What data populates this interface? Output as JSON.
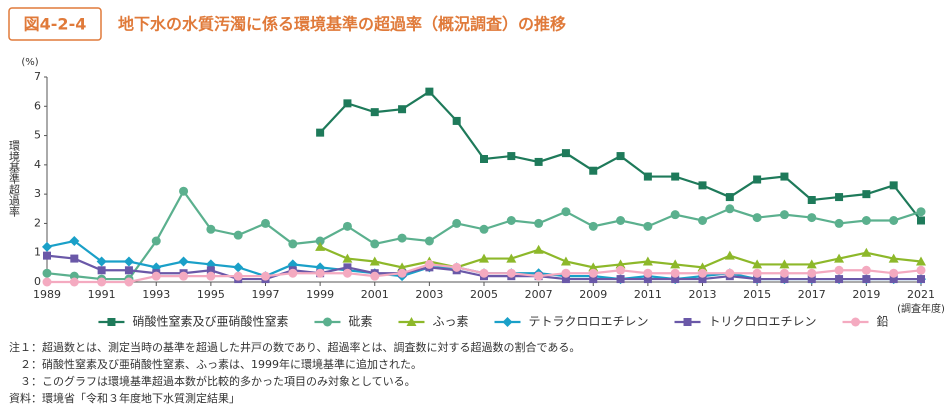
{
  "header": {
    "figure_label": "図4-2-4",
    "title": "地下水の水質汚濁に係る環境基準の超過率（概況調査）の推移"
  },
  "chart_data": {
    "type": "line",
    "ylabel": "環境基準超過率",
    "yunit": "(%)",
    "xlabel": "(調査年度)",
    "x": [
      1989,
      1990,
      1991,
      1992,
      1993,
      1994,
      1995,
      1996,
      1997,
      1998,
      1999,
      2000,
      2001,
      2002,
      2003,
      2004,
      2005,
      2006,
      2007,
      2008,
      2009,
      2010,
      2011,
      2012,
      2013,
      2014,
      2015,
      2016,
      2017,
      2018,
      2019,
      2020,
      2021
    ],
    "xlim": [
      1989,
      2021
    ],
    "xticks": [
      1989,
      1991,
      1993,
      1995,
      1997,
      1999,
      2001,
      2003,
      2005,
      2007,
      2009,
      2011,
      2013,
      2015,
      2017,
      2019,
      2021
    ],
    "ylim": [
      0,
      7
    ],
    "yticks": [
      0,
      1,
      2,
      3,
      4,
      5,
      6,
      7
    ],
    "grid": false,
    "series": [
      {
        "name": "硝酸性窒素及び亜硝酸性窒素",
        "color": "#1e7a5a",
        "marker": "square",
        "values": [
          null,
          null,
          null,
          null,
          null,
          null,
          null,
          null,
          null,
          null,
          5.1,
          6.1,
          5.8,
          5.9,
          6.5,
          5.5,
          4.2,
          4.3,
          4.1,
          4.4,
          3.8,
          4.3,
          3.6,
          3.6,
          3.3,
          2.9,
          3.5,
          3.6,
          2.8,
          2.9,
          3.0,
          3.3,
          2.1
        ]
      },
      {
        "name": "砒素",
        "color": "#5bb08e",
        "marker": "circle",
        "values": [
          0.3,
          0.2,
          0.1,
          0.1,
          1.4,
          3.1,
          1.8,
          1.6,
          2.0,
          1.3,
          1.4,
          1.9,
          1.3,
          1.5,
          1.4,
          2.0,
          1.8,
          2.1,
          2.0,
          2.4,
          1.9,
          2.1,
          1.9,
          2.3,
          2.1,
          2.5,
          2.2,
          2.3,
          2.2,
          2.0,
          2.1,
          2.1,
          2.4
        ]
      },
      {
        "name": "ふっ素",
        "color": "#8db82a",
        "marker": "triangle",
        "values": [
          null,
          null,
          null,
          null,
          null,
          null,
          null,
          null,
          null,
          null,
          1.2,
          0.8,
          0.7,
          0.5,
          0.7,
          0.5,
          0.8,
          0.8,
          1.1,
          0.7,
          0.5,
          0.6,
          0.7,
          0.6,
          0.5,
          0.9,
          0.6,
          0.6,
          0.6,
          0.8,
          1.0,
          0.8,
          0.7
        ]
      },
      {
        "name": "テトラクロロエチレン",
        "color": "#1aa0c8",
        "marker": "diamond",
        "values": [
          1.2,
          1.4,
          0.7,
          0.7,
          0.5,
          0.7,
          0.6,
          0.5,
          0.2,
          0.6,
          0.5,
          0.4,
          0.3,
          0.2,
          0.5,
          0.5,
          0.3,
          0.3,
          0.3,
          0.2,
          0.2,
          0.1,
          0.2,
          0.1,
          0.2,
          0.3,
          0.1,
          0.1,
          0.1,
          0.1,
          0.1,
          0.1,
          0.1
        ]
      },
      {
        "name": "トリクロロエチレン",
        "color": "#6a58a8",
        "marker": "square",
        "values": [
          0.9,
          0.8,
          0.4,
          0.4,
          0.3,
          0.3,
          0.4,
          0.1,
          0.1,
          0.4,
          0.3,
          0.5,
          0.3,
          0.3,
          0.5,
          0.4,
          0.2,
          0.2,
          0.2,
          0.1,
          0.1,
          0.1,
          0.1,
          0.1,
          0.1,
          0.2,
          0.1,
          0.1,
          0.1,
          0.1,
          0.1,
          0.1,
          0.1
        ]
      },
      {
        "name": "鉛",
        "color": "#f4aac0",
        "marker": "circle",
        "values": [
          0.0,
          0.0,
          0.0,
          0.0,
          0.2,
          0.2,
          0.2,
          0.2,
          0.2,
          0.3,
          0.3,
          0.3,
          0.2,
          0.3,
          0.6,
          0.5,
          0.3,
          0.3,
          0.2,
          0.3,
          0.3,
          0.4,
          0.3,
          0.3,
          0.3,
          0.3,
          0.3,
          0.3,
          0.3,
          0.4,
          0.4,
          0.3,
          0.4
        ]
      }
    ]
  },
  "notes": [
    "注１：超過数とは、測定当時の基準を超過した井戸の数であり、超過率とは、調査数に対する超過数の割合である。",
    "　２：硝酸性窒素及び亜硝酸性窒素、ふっ素は、1999年に環境基準に追加された。",
    "　３：このグラフは環境基準超過本数が比較的多かった項目のみ対象としている。",
    "資料：環境省「令和３年度地下水質測定結果」"
  ]
}
